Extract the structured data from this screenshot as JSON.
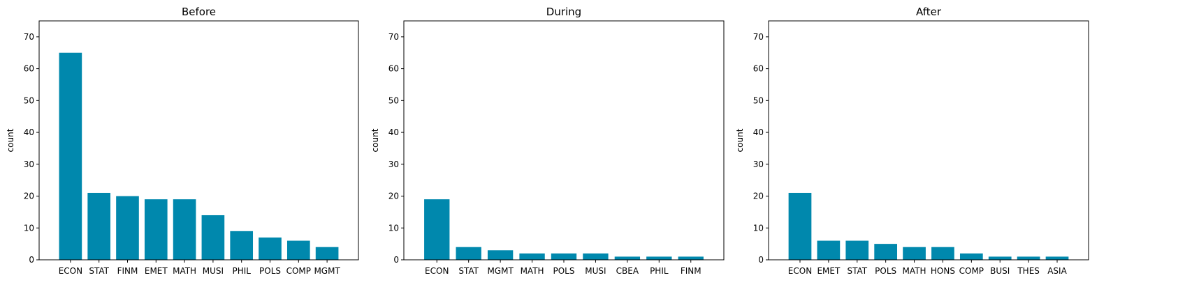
{
  "chart_data": [
    {
      "type": "bar",
      "title": "Before",
      "xlabel": "",
      "ylabel": "count",
      "ylim": [
        0,
        75
      ],
      "yticks": [
        0,
        10,
        20,
        30,
        40,
        50,
        60,
        70
      ],
      "categories": [
        "ECON",
        "STAT",
        "FINM",
        "EMET",
        "MATH",
        "MUSI",
        "PHIL",
        "POLS",
        "COMP",
        "MGMT"
      ],
      "values": [
        65,
        21,
        20,
        19,
        19,
        14,
        9,
        7,
        6,
        4
      ],
      "bar_color": "#0088ad",
      "grid": false
    },
    {
      "type": "bar",
      "title": "During",
      "xlabel": "",
      "ylabel": "count",
      "ylim": [
        0,
        75
      ],
      "yticks": [
        0,
        10,
        20,
        30,
        40,
        50,
        60,
        70
      ],
      "categories": [
        "ECON",
        "STAT",
        "MGMT",
        "MATH",
        "POLS",
        "MUSI",
        "CBEA",
        "PHIL",
        "FINM"
      ],
      "values": [
        19,
        4,
        3,
        2,
        2,
        2,
        1,
        1,
        1
      ],
      "bar_color": "#0088ad",
      "grid": false
    },
    {
      "type": "bar",
      "title": "After",
      "xlabel": "",
      "ylabel": "count",
      "ylim": [
        0,
        75
      ],
      "yticks": [
        0,
        10,
        20,
        30,
        40,
        50,
        60,
        70
      ],
      "categories": [
        "ECON",
        "EMET",
        "STAT",
        "POLS",
        "MATH",
        "HONS",
        "COMP",
        "BUSI",
        "THES",
        "ASIA"
      ],
      "values": [
        21,
        6,
        6,
        5,
        4,
        4,
        2,
        1,
        1,
        1
      ],
      "bar_color": "#0088ad",
      "grid": false
    }
  ]
}
